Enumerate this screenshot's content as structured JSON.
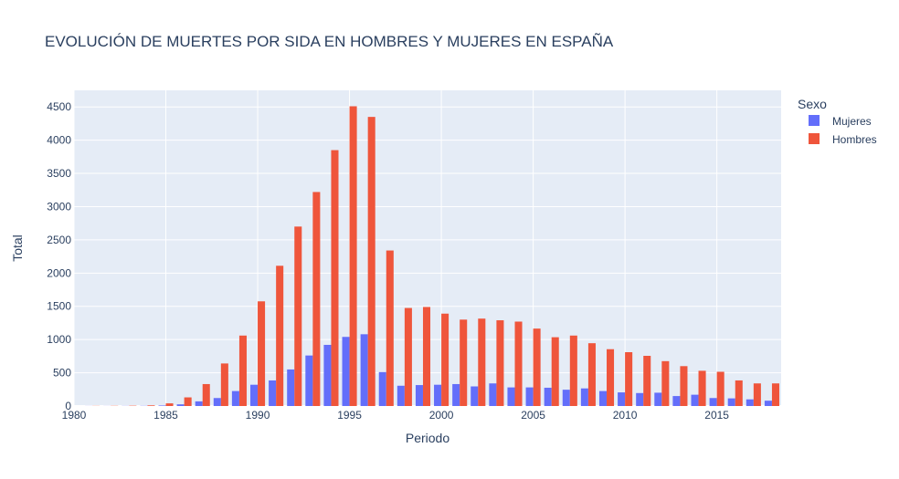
{
  "chart_data": {
    "type": "bar",
    "title": "EVOLUCIÓN DE MUERTES POR SIDA EN HOMBRES Y MUJERES EN ESPAÑA",
    "xlabel": "Periodo",
    "ylabel": "Total",
    "xlim": [
      1980,
      2018.5
    ],
    "ylim": [
      0,
      4750
    ],
    "x_ticks": [
      1980,
      1985,
      1990,
      1995,
      2000,
      2005,
      2010,
      2015
    ],
    "y_ticks": [
      0,
      500,
      1000,
      1500,
      2000,
      2500,
      3000,
      3500,
      4000,
      4500
    ],
    "grid": true,
    "legend": {
      "title": "Sexo",
      "position": "top-right"
    },
    "x": [
      1981,
      1982,
      1983,
      1984,
      1985,
      1986,
      1987,
      1988,
      1989,
      1990,
      1991,
      1992,
      1993,
      1994,
      1995,
      1996,
      1997,
      1998,
      1999,
      2000,
      2001,
      2002,
      2003,
      2004,
      2005,
      2006,
      2007,
      2008,
      2009,
      2010,
      2011,
      2012,
      2013,
      2014,
      2015,
      2016,
      2017,
      2018
    ],
    "series": [
      {
        "name": "Mujeres",
        "color": "#636efa",
        "values": [
          1,
          1,
          2,
          3,
          8,
          25,
          70,
          120,
          225,
          320,
          385,
          550,
          760,
          920,
          1040,
          1080,
          510,
          305,
          315,
          320,
          330,
          295,
          340,
          280,
          280,
          275,
          245,
          265,
          225,
          205,
          195,
          200,
          150,
          170,
          120,
          115,
          100,
          80
        ]
      },
      {
        "name": "Hombres",
        "color": "#ef553b",
        "values": [
          2,
          3,
          5,
          10,
          40,
          130,
          330,
          640,
          1060,
          1575,
          2110,
          2700,
          3220,
          3850,
          4510,
          4350,
          2340,
          1475,
          1490,
          1390,
          1300,
          1315,
          1290,
          1270,
          1165,
          1035,
          1060,
          945,
          855,
          810,
          755,
          675,
          600,
          530,
          515,
          385,
          340,
          340
        ]
      }
    ]
  }
}
